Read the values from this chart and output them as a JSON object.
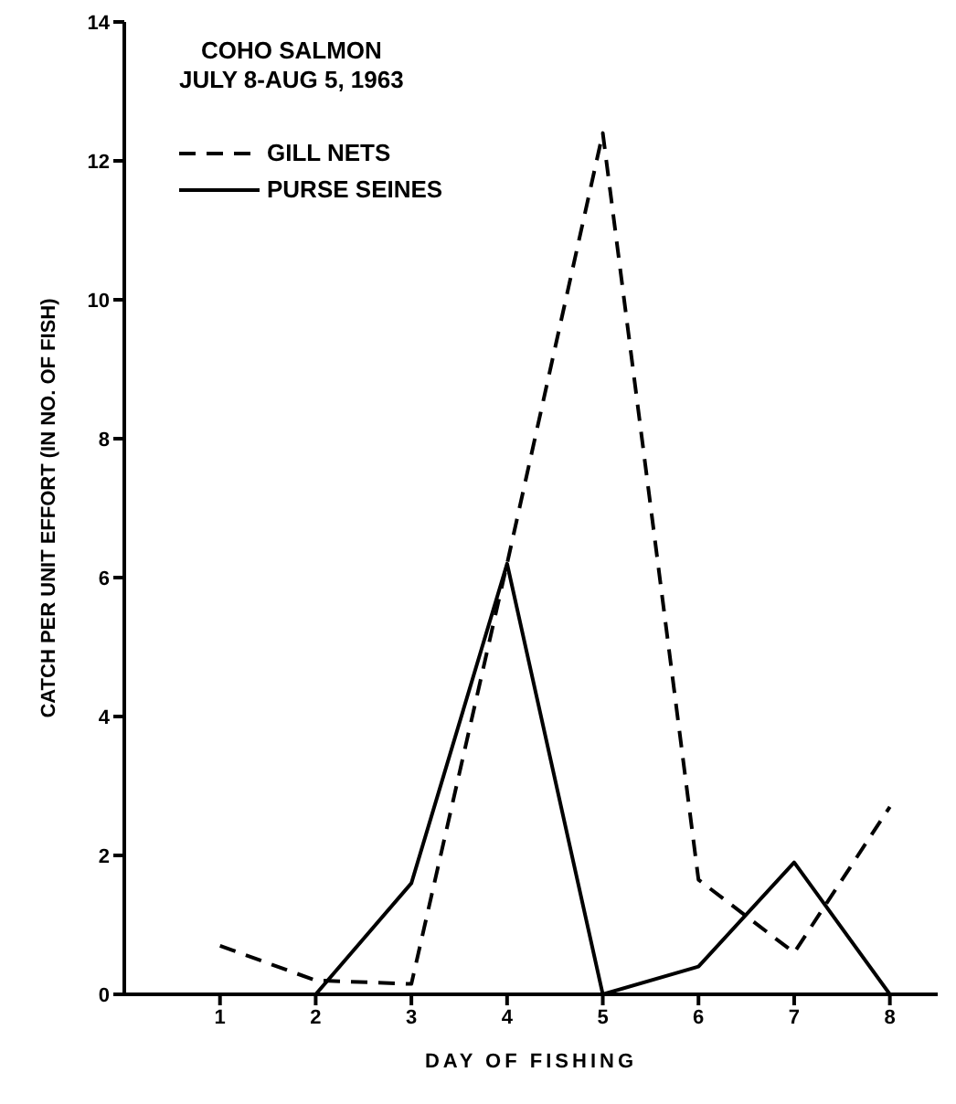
{
  "chart_data": {
    "type": "line",
    "title": "COHO SALMON",
    "subtitle": "JULY 8-AUG 5, 1963",
    "xlabel": "DAY OF FISHING",
    "ylabel": "CATCH PER UNIT EFFORT (IN NO. OF FISH)",
    "x": [
      1,
      2,
      3,
      4,
      5,
      6,
      7,
      8
    ],
    "series": [
      {
        "name": "GILL NETS",
        "color": "#000000",
        "line_style": "dashed",
        "values": [
          0.7,
          0.2,
          0.15,
          6.2,
          12.4,
          1.65,
          0.6,
          2.7
        ]
      },
      {
        "name": "PURSE SEINES",
        "color": "#000000",
        "line_style": "solid",
        "values": [
          null,
          0,
          1.6,
          6.2,
          0,
          0.4,
          1.9,
          0
        ]
      }
    ],
    "xlim": [
      0,
      8.5
    ],
    "xticks": [
      1,
      2,
      3,
      4,
      5,
      6,
      7,
      8
    ],
    "ylim": [
      0,
      14
    ],
    "yticks": [
      0,
      2,
      4,
      6,
      8,
      10,
      12,
      14
    ],
    "grid": false,
    "legend": "top left",
    "marker": "none"
  }
}
